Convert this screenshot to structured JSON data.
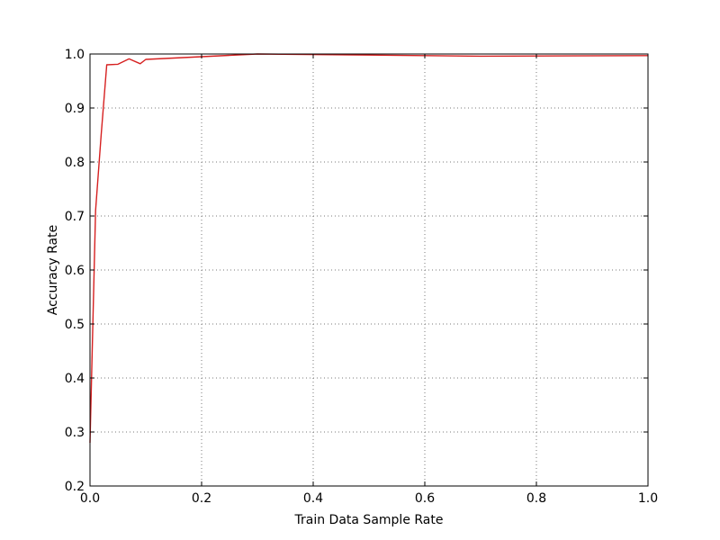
{
  "chart_data": {
    "type": "line",
    "title": "",
    "xlabel": "Train Data Sample Rate",
    "ylabel": "Accuracy Rate",
    "xlim": [
      0.0,
      1.0
    ],
    "ylim": [
      0.2,
      1.0
    ],
    "xticks": [
      0.0,
      0.2,
      0.4,
      0.6,
      0.8,
      1.0
    ],
    "yticks": [
      0.2,
      0.3,
      0.4,
      0.5,
      0.6,
      0.7,
      0.8,
      0.9,
      1.0
    ],
    "xtick_labels": [
      "0.0",
      "0.2",
      "0.4",
      "0.6",
      "0.8",
      "1.0"
    ],
    "ytick_labels": [
      "0.2",
      "0.3",
      "0.4",
      "0.5",
      "0.6",
      "0.7",
      "0.8",
      "0.9",
      "1.0"
    ],
    "grid": true,
    "legend": "none",
    "series": [
      {
        "color": "#d62020",
        "x": [
          0.0,
          0.01,
          0.02,
          0.03,
          0.05,
          0.07,
          0.09,
          0.1,
          0.2,
          0.3,
          0.5,
          0.7,
          1.0
        ],
        "y": [
          0.28,
          0.71,
          0.85,
          0.98,
          0.981,
          0.991,
          0.982,
          0.99,
          0.995,
          1.0,
          0.998,
          0.996,
          0.997
        ]
      }
    ]
  }
}
